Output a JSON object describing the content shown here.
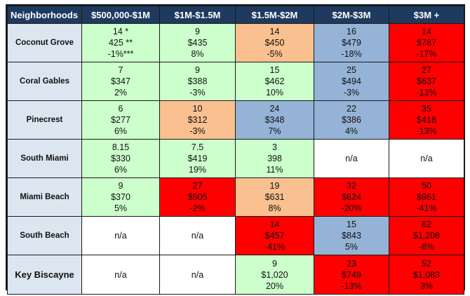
{
  "headers": [
    "Neighborhoods",
    "$500,000-$1M",
    "$1M-$1.5M",
    "$1.5M-$2M",
    "$2M-$3M",
    "$3M +"
  ],
  "colors": {
    "green": "#ccffcc",
    "orange": "#fac090",
    "blue": "#95b3d7",
    "red": "#ff0000",
    "white": "#ffffff",
    "header": "#1f3a5f",
    "rowhead": "#dce6f1"
  },
  "rows": [
    {
      "name": "Coconut Grove",
      "cells": [
        {
          "color": "green",
          "lines": [
            "14 *",
            "425 **",
            "-1%***"
          ]
        },
        {
          "color": "green",
          "lines": [
            "9",
            "$435",
            "8%"
          ]
        },
        {
          "color": "orange",
          "lines": [
            "14",
            "$450",
            "-5%"
          ]
        },
        {
          "color": "blue",
          "lines": [
            "16",
            "$479",
            "-18%"
          ]
        },
        {
          "color": "red",
          "lines": [
            "14",
            "$787",
            "-17%"
          ]
        }
      ]
    },
    {
      "name": "Coral Gables",
      "cells": [
        {
          "color": "green",
          "lines": [
            "7",
            "$347",
            "2%"
          ]
        },
        {
          "color": "green",
          "lines": [
            "9",
            "$388",
            "-3%"
          ]
        },
        {
          "color": "green",
          "lines": [
            "15",
            "$462",
            "10%"
          ]
        },
        {
          "color": "blue",
          "lines": [
            "25",
            "$494",
            "-3%"
          ]
        },
        {
          "color": "red",
          "lines": [
            "27",
            "$637",
            "-13%"
          ]
        }
      ]
    },
    {
      "name": "Pinecrest",
      "cells": [
        {
          "color": "green",
          "lines": [
            "6",
            "$277",
            "6%"
          ]
        },
        {
          "color": "orange",
          "lines": [
            "10",
            "$312",
            "-3%"
          ]
        },
        {
          "color": "blue",
          "lines": [
            "24",
            "$348",
            "7%"
          ]
        },
        {
          "color": "blue",
          "lines": [
            "22",
            "$386",
            "4%"
          ]
        },
        {
          "color": "red",
          "lines": [
            "35",
            "$418",
            "-13%"
          ]
        }
      ]
    },
    {
      "name": "South Miami",
      "cells": [
        {
          "color": "green",
          "lines": [
            "8.15",
            "$330",
            "6%"
          ]
        },
        {
          "color": "green",
          "lines": [
            "7.5",
            "$419",
            "19%"
          ]
        },
        {
          "color": "green",
          "lines": [
            "3",
            "398",
            "11%"
          ]
        },
        {
          "color": "white",
          "lines": [
            "n/a"
          ]
        },
        {
          "color": "white",
          "lines": [
            "n/a"
          ]
        }
      ]
    },
    {
      "name": "Miami Beach",
      "cells": [
        {
          "color": "green",
          "lines": [
            "9",
            "$370",
            "5%"
          ]
        },
        {
          "color": "red",
          "lines": [
            "27",
            "$505",
            "-2%"
          ]
        },
        {
          "color": "orange",
          "lines": [
            "19",
            "$631",
            "8%"
          ]
        },
        {
          "color": "red",
          "lines": [
            "32",
            "$624",
            "-20%"
          ]
        },
        {
          "color": "red",
          "lines": [
            "50",
            "$961",
            "-41%"
          ]
        }
      ]
    },
    {
      "name": "South Beach",
      "cells": [
        {
          "color": "white",
          "lines": [
            "n/a"
          ]
        },
        {
          "color": "white",
          "lines": [
            "n/a"
          ]
        },
        {
          "color": "red",
          "lines": [
            "14",
            "$457",
            "-41%"
          ]
        },
        {
          "color": "blue",
          "lines": [
            "15",
            "$843",
            "5%"
          ]
        },
        {
          "color": "red",
          "lines": [
            "62",
            "$1,208",
            "-8%"
          ]
        }
      ]
    },
    {
      "name": "Key Biscayne",
      "big": true,
      "cells": [
        {
          "color": "white",
          "lines": [
            "n/a"
          ]
        },
        {
          "color": "white",
          "lines": [
            "n/a"
          ]
        },
        {
          "color": "green",
          "lines": [
            "9",
            "$1,020",
            "20%"
          ]
        },
        {
          "color": "red",
          "lines": [
            "23",
            "$749",
            "-13%"
          ]
        },
        {
          "color": "red",
          "lines": [
            "52",
            "$1,083",
            "3%"
          ]
        }
      ]
    }
  ]
}
